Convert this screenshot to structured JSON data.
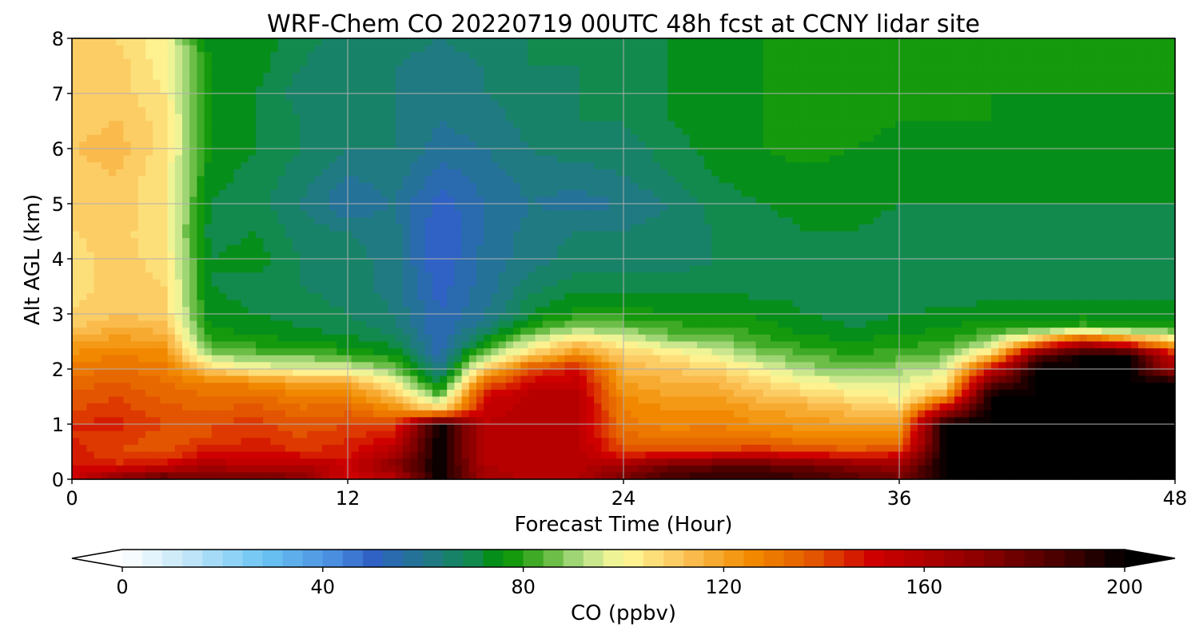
{
  "chart_data": {
    "type": "heatmap",
    "title": "WRF-Chem CO  20220719 00UTC 48h fcst at CCNY lidar site",
    "xlabel": "Forecast Time (Hour)",
    "ylabel": "Alt AGL (km)",
    "xlim": [
      0,
      48
    ],
    "ylim": [
      0,
      8
    ],
    "x_ticks": [
      "0",
      "12",
      "24",
      "36",
      "48"
    ],
    "y_ticks": [
      "0",
      "1",
      "2",
      "3",
      "4",
      "5",
      "6",
      "7",
      "8"
    ],
    "grid": true,
    "colorbar": {
      "label": "CO  (ppbv)",
      "range": [
        0,
        200
      ],
      "step": 4,
      "extend": "both",
      "orientation": "horizontal",
      "position": "bottom",
      "ticks": [
        "0",
        "40",
        "80",
        "120",
        "160",
        "200"
      ],
      "stops": [
        {
          "value": 0,
          "color": "#ffffff"
        },
        {
          "value": 12,
          "color": "#c8e8f8"
        },
        {
          "value": 28,
          "color": "#6cc6f4"
        },
        {
          "value": 42,
          "color": "#4a8ee0"
        },
        {
          "value": 50,
          "color": "#2f62c4"
        },
        {
          "value": 60,
          "color": "#22768e"
        },
        {
          "value": 70,
          "color": "#128a4e"
        },
        {
          "value": 76,
          "color": "#009000"
        },
        {
          "value": 84,
          "color": "#52b332"
        },
        {
          "value": 92,
          "color": "#b9e08a"
        },
        {
          "value": 100,
          "color": "#fffa9a"
        },
        {
          "value": 112,
          "color": "#fbc45a"
        },
        {
          "value": 125,
          "color": "#f28c00"
        },
        {
          "value": 137,
          "color": "#e55c00"
        },
        {
          "value": 150,
          "color": "#cf0000"
        },
        {
          "value": 172,
          "color": "#8a0000"
        },
        {
          "value": 190,
          "color": "#3a0000"
        },
        {
          "value": 200,
          "color": "#000000"
        }
      ]
    },
    "hours": [
      0,
      2,
      4,
      6,
      8,
      10,
      12,
      14,
      16,
      18,
      20,
      22,
      24,
      26,
      28,
      30,
      32,
      34,
      36,
      38,
      40,
      42,
      44,
      46,
      48
    ],
    "altitudes_km": [
      0,
      0.25,
      0.5,
      0.75,
      1,
      1.25,
      1.5,
      1.75,
      2,
      2.25,
      2.5,
      2.75,
      3,
      3.5,
      4,
      4.5,
      5,
      5.5,
      6,
      6.5,
      7,
      7.5,
      8
    ],
    "co_ppbv": [
      [
        150,
        174,
        185,
        176,
        183,
        174,
        148,
        156,
        200,
        164,
        158,
        158,
        178,
        190,
        192,
        192,
        190,
        184,
        178,
        200,
        200,
        200,
        200,
        200,
        200
      ],
      [
        148,
        145,
        150,
        162,
        154,
        160,
        152,
        172,
        200,
        160,
        158,
        158,
        165,
        178,
        182,
        182,
        178,
        172,
        168,
        200,
        200,
        200,
        200,
        200,
        200
      ],
      [
        146,
        140,
        137,
        148,
        146,
        144,
        146,
        160,
        200,
        156,
        158,
        158,
        140,
        140,
        142,
        144,
        140,
        138,
        142,
        200,
        200,
        200,
        200,
        200,
        200
      ],
      [
        144,
        142,
        138,
        140,
        145,
        140,
        144,
        148,
        200,
        156,
        158,
        158,
        135,
        130,
        132,
        130,
        128,
        127,
        126,
        200,
        200,
        200,
        200,
        200,
        200
      ],
      [
        144,
        146,
        140,
        140,
        142,
        137,
        140,
        140,
        200,
        156,
        158,
        158,
        130,
        126,
        128,
        124,
        122,
        120,
        120,
        200,
        200,
        200,
        200,
        200,
        200
      ],
      [
        140,
        142,
        137,
        136,
        138,
        133,
        135,
        125,
        110,
        154,
        158,
        158,
        128,
        124,
        125,
        120,
        118,
        114,
        110,
        160,
        200,
        200,
        200,
        200,
        200
      ],
      [
        138,
        140,
        135,
        132,
        133,
        128,
        128,
        115,
        85,
        150,
        158,
        158,
        125,
        120,
        120,
        114,
        110,
        105,
        100,
        120,
        200,
        200,
        200,
        200,
        200
      ],
      [
        134,
        136,
        132,
        128,
        126,
        120,
        118,
        100,
        70,
        135,
        150,
        154,
        120,
        116,
        115,
        108,
        100,
        96,
        96,
        104,
        180,
        200,
        200,
        200,
        200
      ],
      [
        130,
        132,
        130,
        110,
        100,
        98,
        96,
        88,
        60,
        110,
        140,
        148,
        115,
        112,
        108,
        100,
        90,
        88,
        90,
        95,
        150,
        200,
        200,
        200,
        160
      ],
      [
        125,
        128,
        126,
        90,
        86,
        86,
        80,
        76,
        55,
        90,
        110,
        125,
        110,
        105,
        98,
        88,
        84,
        80,
        82,
        86,
        110,
        180,
        200,
        200,
        150
      ],
      [
        118,
        122,
        120,
        80,
        78,
        76,
        74,
        70,
        52,
        75,
        95,
        110,
        100,
        90,
        88,
        82,
        78,
        76,
        78,
        80,
        90,
        120,
        150,
        130,
        110
      ],
      [
        112,
        116,
        114,
        76,
        74,
        72,
        70,
        66,
        52,
        64,
        80,
        88,
        86,
        82,
        80,
        78,
        74,
        72,
        74,
        76,
        78,
        80,
        82,
        80,
        80
      ],
      [
        108,
        112,
        110,
        74,
        72,
        70,
        68,
        64,
        52,
        60,
        72,
        78,
        78,
        76,
        76,
        75,
        72,
        70,
        72,
        73,
        74,
        74,
        74,
        74,
        74
      ],
      [
        106,
        110,
        108,
        72,
        70,
        68,
        66,
        62,
        50,
        58,
        66,
        70,
        70,
        70,
        70,
        70,
        70,
        68,
        68,
        68,
        70,
        70,
        70,
        70,
        70
      ],
      [
        106,
        110,
        106,
        72,
        74,
        68,
        66,
        62,
        48,
        58,
        62,
        66,
        66,
        66,
        68,
        68,
        70,
        68,
        68,
        68,
        70,
        70,
        70,
        70,
        70
      ],
      [
        108,
        110,
        104,
        70,
        72,
        66,
        64,
        62,
        48,
        56,
        62,
        64,
        64,
        66,
        68,
        70,
        72,
        72,
        70,
        70,
        70,
        70,
        70,
        70,
        70
      ],
      [
        108,
        112,
        104,
        72,
        70,
        64,
        56,
        60,
        50,
        56,
        60,
        58,
        60,
        64,
        70,
        72,
        74,
        74,
        72,
        72,
        72,
        72,
        72,
        72,
        72
      ],
      [
        110,
        112,
        104,
        74,
        70,
        66,
        60,
        62,
        54,
        58,
        62,
        62,
        64,
        68,
        72,
        74,
        74,
        74,
        74,
        74,
        74,
        74,
        74,
        74,
        72
      ],
      [
        112,
        114,
        106,
        76,
        72,
        68,
        64,
        64,
        58,
        60,
        64,
        66,
        66,
        70,
        74,
        76,
        78,
        76,
        74,
        74,
        74,
        72,
        72,
        72,
        72
      ],
      [
        110,
        112,
        106,
        76,
        72,
        68,
        64,
        64,
        60,
        62,
        66,
        68,
        68,
        72,
        74,
        76,
        80,
        78,
        76,
        76,
        76,
        74,
        74,
        74,
        74
      ],
      [
        108,
        110,
        104,
        76,
        72,
        66,
        64,
        64,
        60,
        64,
        66,
        68,
        68,
        72,
        74,
        76,
        80,
        78,
        76,
        76,
        76,
        76,
        76,
        76,
        76
      ],
      [
        108,
        110,
        102,
        76,
        74,
        68,
        64,
        64,
        62,
        64,
        68,
        68,
        70,
        72,
        74,
        76,
        78,
        78,
        76,
        76,
        76,
        76,
        76,
        76,
        76
      ],
      [
        108,
        108,
        100,
        74,
        74,
        70,
        66,
        66,
        64,
        66,
        68,
        70,
        72,
        72,
        74,
        76,
        76,
        76,
        76,
        76,
        76,
        76,
        76,
        76,
        76
      ]
    ]
  }
}
